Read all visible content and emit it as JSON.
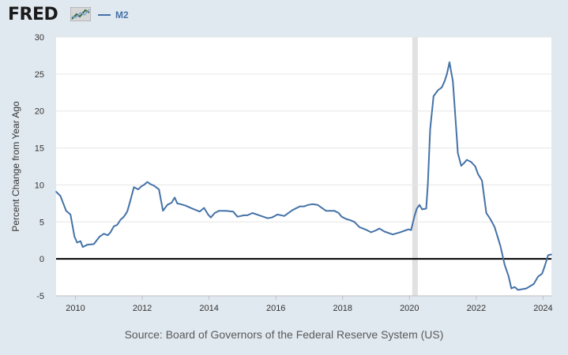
{
  "header": {
    "logo_text": "FRED",
    "logo_icon": "trend-line-icon"
  },
  "chart_data": {
    "type": "line",
    "ylabel": "Percent Change from Year Ago",
    "ylim": [
      -5,
      30
    ],
    "yticks": [
      -5,
      0,
      5,
      10,
      15,
      20,
      25,
      30
    ],
    "xlim": [
      2009.42,
      2024.25
    ],
    "xticks": [
      2010,
      2012,
      2014,
      2016,
      2018,
      2020,
      2022,
      2024
    ],
    "grid": true,
    "legend": "top-left",
    "recession_shading": [
      [
        2020.083,
        2020.25
      ]
    ],
    "zero_line": true,
    "colors": {
      "series": "#4572a7",
      "recession": "#e1e1e1",
      "zero_line": "#000000"
    },
    "series": [
      {
        "name": "M2",
        "x": [
          2009.42,
          2009.55,
          2009.72,
          2009.85,
          2009.97,
          2010.05,
          2010.15,
          2010.22,
          2010.35,
          2010.55,
          2010.72,
          2010.85,
          2010.97,
          2011.05,
          2011.15,
          2011.25,
          2011.35,
          2011.45,
          2011.55,
          2011.65,
          2011.75,
          2011.88,
          2011.97,
          2012.05,
          2012.15,
          2012.25,
          2012.35,
          2012.5,
          2012.62,
          2012.75,
          2012.88,
          2012.97,
          2013.05,
          2013.15,
          2013.3,
          2013.5,
          2013.72,
          2013.85,
          2013.97,
          2014.05,
          2014.17,
          2014.3,
          2014.5,
          2014.72,
          2014.85,
          2015.05,
          2015.15,
          2015.3,
          2015.5,
          2015.75,
          2015.88,
          2015.97,
          2016.05,
          2016.25,
          2016.5,
          2016.72,
          2016.85,
          2016.97,
          2017.1,
          2017.25,
          2017.5,
          2017.75,
          2017.88,
          2017.97,
          2018.1,
          2018.25,
          2018.35,
          2018.5,
          2018.72,
          2018.85,
          2018.97,
          2019.1,
          2019.25,
          2019.5,
          2019.72,
          2019.85,
          2019.97,
          2020.05,
          2020.15,
          2020.22,
          2020.3,
          2020.38,
          2020.5,
          2020.55,
          2020.62,
          2020.72,
          2020.85,
          2020.97,
          2021.05,
          2021.12,
          2021.2,
          2021.3,
          2021.45,
          2021.55,
          2021.62,
          2021.72,
          2021.85,
          2021.97,
          2022.05,
          2022.17,
          2022.3,
          2022.42,
          2022.55,
          2022.72,
          2022.85,
          2022.97,
          2023.05,
          2023.15,
          2023.25,
          2023.5,
          2023.72,
          2023.85,
          2023.97,
          2024.05,
          2024.15,
          2024.25
        ],
        "values": [
          9.1,
          8.5,
          6.5,
          6.0,
          3.0,
          2.2,
          2.4,
          1.6,
          1.9,
          2.0,
          3.0,
          3.4,
          3.2,
          3.6,
          4.4,
          4.6,
          5.3,
          5.7,
          6.4,
          8.0,
          9.7,
          9.4,
          9.8,
          10.0,
          10.4,
          10.1,
          9.9,
          9.4,
          6.5,
          7.3,
          7.6,
          8.3,
          7.5,
          7.4,
          7.2,
          6.8,
          6.4,
          6.9,
          6.0,
          5.6,
          6.2,
          6.5,
          6.5,
          6.4,
          5.7,
          5.9,
          5.9,
          6.2,
          5.9,
          5.5,
          5.6,
          5.8,
          6.0,
          5.8,
          6.6,
          7.1,
          7.1,
          7.3,
          7.4,
          7.3,
          6.5,
          6.5,
          6.2,
          5.7,
          5.4,
          5.2,
          5.0,
          4.3,
          3.9,
          3.6,
          3.8,
          4.1,
          3.7,
          3.3,
          3.6,
          3.8,
          4.0,
          3.9,
          5.8,
          6.8,
          7.3,
          6.7,
          6.8,
          10.1,
          17.5,
          22.0,
          22.8,
          23.2,
          24.0,
          25.0,
          26.6,
          24.0,
          14.3,
          12.6,
          12.9,
          13.4,
          13.1,
          12.5,
          11.5,
          10.6,
          6.2,
          5.4,
          4.3,
          1.8,
          -0.8,
          -2.4,
          -4.0,
          -3.8,
          -4.2,
          -4.0,
          -3.4,
          -2.4,
          -2.0,
          -1.0,
          0.5,
          0.6
        ]
      }
    ]
  },
  "footer": {
    "source": "Source: Board of Governors of the Federal Reserve System (US)"
  }
}
